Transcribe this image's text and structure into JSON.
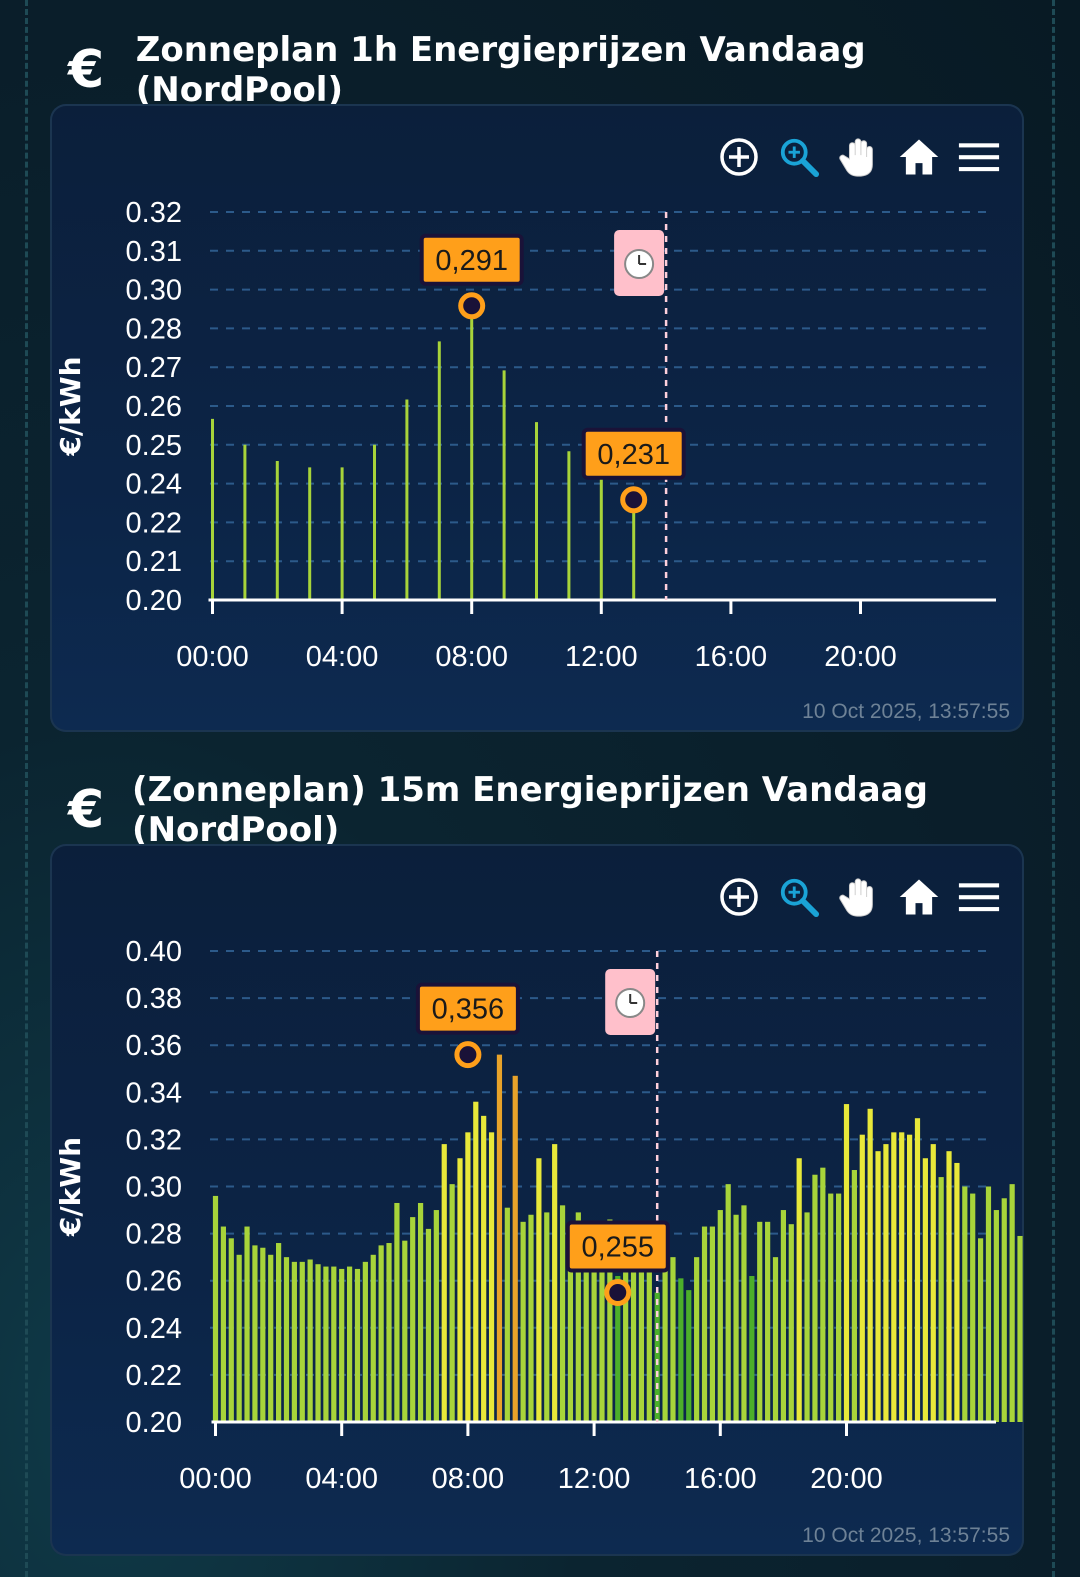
{
  "colors": {
    "accent": "#ff9f1a",
    "bar_low": "#4caf2a",
    "bar_mid": "#a8d43a",
    "bar_high": "#e8e83a",
    "grid": "#2c5a8a",
    "marker": "#ffc0cb"
  },
  "panels": [
    {
      "title_icon": "€",
      "title": "Zonneplan 1h Energieprijzen Vandaag (NordPool)",
      "timestamp": "10 Oct 2025, 13:57:55",
      "toolbar": [
        "zoom-in-icon",
        "zoom-select-icon",
        "pan-hand-icon",
        "home-icon",
        "menu-icon"
      ],
      "now_marker_icon": "clock-icon"
    },
    {
      "title_icon": "€",
      "title": "(Zonneplan) 15m Energieprijzen Vandaag (NordPool)",
      "timestamp": "10 Oct 2025, 13:57:55",
      "toolbar": [
        "zoom-in-icon",
        "zoom-select-icon",
        "pan-hand-icon",
        "home-icon",
        "menu-icon"
      ],
      "now_marker_icon": "clock-icon"
    }
  ],
  "chart_data": [
    {
      "type": "bar",
      "ylabel": "€/kWh",
      "ylim": [
        0.2,
        0.32
      ],
      "yticks": [
        "0.32",
        "0.31",
        "0.30",
        "0.28",
        "0.27",
        "0.26",
        "0.25",
        "0.24",
        "0.22",
        "0.21",
        "0.20"
      ],
      "xticks": [
        "00:00",
        "04:00",
        "08:00",
        "12:00",
        "16:00",
        "20:00"
      ],
      "x_hours": [
        0,
        1,
        2,
        3,
        4,
        5,
        6,
        7,
        8,
        9,
        10,
        11,
        12,
        13
      ],
      "values": [
        0.256,
        0.248,
        0.243,
        0.241,
        0.241,
        0.248,
        0.262,
        0.28,
        0.291,
        0.271,
        0.255,
        0.246,
        0.241,
        0.231
      ],
      "now_hour": 14,
      "annotations": [
        {
          "label": "0,291",
          "hour": 8,
          "value": 0.291
        },
        {
          "label": "0,231",
          "hour": 13,
          "value": 0.231
        }
      ],
      "grid": true
    },
    {
      "type": "bar",
      "ylabel": "€/kWh",
      "ylim": [
        0.2,
        0.4
      ],
      "yticks": [
        "0.40",
        "0.38",
        "0.36",
        "0.34",
        "0.32",
        "0.30",
        "0.28",
        "0.26",
        "0.24",
        "0.22",
        "0.20"
      ],
      "xticks": [
        "00:00",
        "04:00",
        "08:00",
        "12:00",
        "16:00",
        "20:00"
      ],
      "interval_minutes": 15,
      "values": [
        0.296,
        0.283,
        0.278,
        0.271,
        0.283,
        0.275,
        0.274,
        0.271,
        0.276,
        0.27,
        0.268,
        0.268,
        0.269,
        0.267,
        0.266,
        0.266,
        0.265,
        0.266,
        0.265,
        0.268,
        0.271,
        0.275,
        0.276,
        0.293,
        0.277,
        0.287,
        0.293,
        0.282,
        0.29,
        0.318,
        0.301,
        0.312,
        0.323,
        0.336,
        0.33,
        0.323,
        0.356,
        0.291,
        0.347,
        0.285,
        0.288,
        0.312,
        0.289,
        0.318,
        0.292,
        0.27,
        0.289,
        0.276,
        0.28,
        0.266,
        0.286,
        0.262,
        0.283,
        0.272,
        0.279,
        0.265,
        0.255,
        0.265,
        0.27,
        0.261,
        0.256,
        0.27,
        0.283,
        0.283,
        0.29,
        0.301,
        0.288,
        0.292,
        0.262,
        0.285,
        0.285,
        0.27,
        0.29,
        0.284,
        0.312,
        0.289,
        0.305,
        0.308,
        0.297,
        0.297,
        0.335,
        0.307,
        0.322,
        0.333,
        0.315,
        0.318,
        0.323,
        0.323,
        0.322,
        0.329,
        0.312,
        0.318,
        0.304,
        0.315,
        0.31,
        0.3,
        0.297,
        0.278,
        0.3,
        0.29,
        0.295,
        0.301,
        0.279,
        0.282,
        0.276,
        0.283,
        0.288,
        0.285,
        0.279,
        0.281,
        0.288,
        0.28,
        0.282,
        0.287,
        0.28,
        0.289,
        0.289,
        0.281,
        0.281,
        0.285,
        0.281,
        0.286,
        0.278,
        0.281,
        0.281,
        0.286,
        0.279,
        0.282,
        0.285,
        0.282,
        0.288,
        0.28,
        0.291,
        0.286,
        0.281
      ],
      "now_hour": 14,
      "annotations": [
        {
          "label": "0,356",
          "hour": 8.0,
          "value": 0.356
        },
        {
          "label": "0,255",
          "hour": 12.75,
          "value": 0.255
        }
      ],
      "grid": true
    }
  ]
}
